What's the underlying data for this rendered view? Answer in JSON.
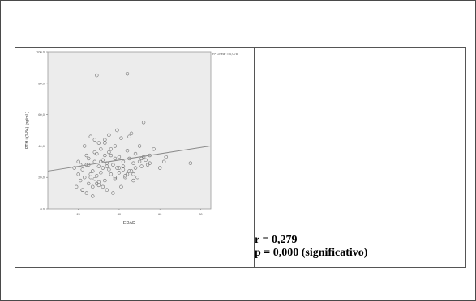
{
  "stats": {
    "r_line": "r = 0,279",
    "p_line": "p = 0,000 (significativo)"
  },
  "chart_data": {
    "type": "scatter",
    "xlabel": "EDAD",
    "ylabel": "PTH i (1-84) (pg/mL)",
    "xlim": [
      5,
      85
    ],
    "ylim": [
      0,
      100
    ],
    "x_ticks": [
      20,
      40,
      60,
      80
    ],
    "y_ticks": [
      0,
      20,
      40,
      60,
      80,
      100
    ],
    "y_tick_labels": [
      "0,0",
      "20,0",
      "40,0",
      "60,0",
      "80,0",
      "100,0"
    ],
    "legend": "R² Linear = 0,078",
    "legend_position": "top-right",
    "fit_line": {
      "x0": 5,
      "y0": 24,
      "x1": 85,
      "y1": 40
    },
    "x": [
      19,
      20,
      21,
      22,
      22,
      23,
      24,
      25,
      25,
      26,
      27,
      27,
      28,
      28,
      29,
      29,
      30,
      30,
      31,
      31,
      32,
      32,
      33,
      33,
      34,
      35,
      35,
      36,
      36,
      37,
      38,
      38,
      39,
      40,
      40,
      41,
      42,
      42,
      43,
      44,
      45,
      45,
      46,
      47,
      48,
      48,
      50,
      50,
      51,
      52,
      52,
      53,
      54,
      55,
      57,
      60,
      62,
      63,
      20,
      23,
      26,
      28,
      30,
      31,
      33,
      36,
      38,
      40,
      44,
      46,
      49,
      22,
      24,
      27,
      29,
      32,
      34,
      37,
      41,
      43,
      47,
      55,
      75,
      29,
      44,
      18,
      25,
      35,
      39,
      45,
      51,
      21,
      26,
      30,
      34,
      38,
      42,
      47,
      33,
      28,
      24
    ],
    "y": [
      14,
      22,
      18,
      25,
      12,
      20,
      28,
      16,
      32,
      22,
      24,
      14,
      30,
      19,
      35,
      21,
      27,
      15,
      38,
      23,
      26,
      31,
      18,
      42,
      29,
      25,
      36,
      22,
      34,
      28,
      20,
      40,
      26,
      33,
      23,
      45,
      30,
      27,
      21,
      37,
      24,
      32,
      48,
      29,
      35,
      26,
      30,
      40,
      27,
      33,
      55,
      31,
      28,
      29,
      38,
      26,
      30,
      33,
      30,
      40,
      46,
      44,
      42,
      30,
      34,
      38,
      32,
      26,
      22,
      24,
      20,
      12,
      10,
      8,
      16,
      14,
      12,
      10,
      14,
      20,
      18,
      34,
      29,
      85,
      86,
      26,
      28,
      47,
      50,
      46,
      32,
      28,
      20,
      17,
      27,
      19,
      25,
      22,
      44,
      36,
      34
    ]
  }
}
